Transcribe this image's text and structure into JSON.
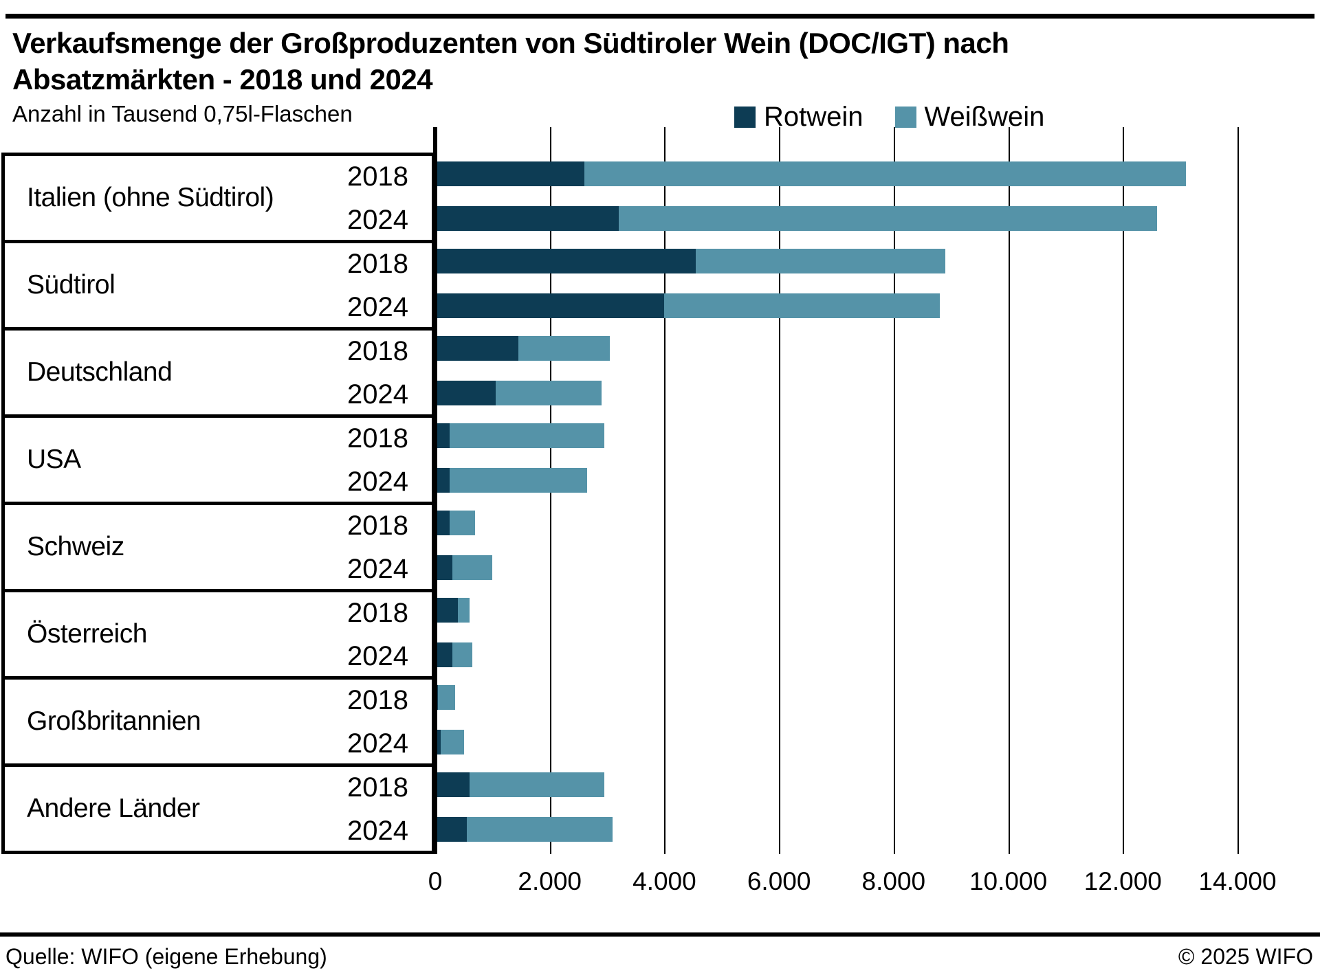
{
  "header": {
    "title_line1": "Verkaufsmenge der Großproduzenten von Südtiroler Wein (DOC/IGT) nach",
    "title_line2": "Absatzmärkten - 2018 und 2024",
    "subtitle": "Anzahl in Tausend 0,75l-Flaschen"
  },
  "legend": {
    "items": [
      {
        "label": "Rotwein",
        "color": "#0d3c54"
      },
      {
        "label": "Weißwein",
        "color": "#5593a8"
      }
    ]
  },
  "footer": {
    "source": "Quelle: WIFO (eigene Erhebung)",
    "copyright": "© 2025 WIFO"
  },
  "chart_data": {
    "type": "bar",
    "orientation": "horizontal",
    "stacked": true,
    "title": "Verkaufsmenge der Großproduzenten von Südtiroler Wein (DOC/IGT) nach Absatzmärkten - 2018 und 2024",
    "unit_label": "Anzahl in Tausend 0,75l-Flaschen",
    "series_names": [
      "Rotwein",
      "Weißwein"
    ],
    "series_colors": {
      "Rotwein": "#0d3c54",
      "Weißwein": "#5593a8"
    },
    "xlim": [
      0,
      14000
    ],
    "x_ticks": [
      0,
      2000,
      4000,
      6000,
      8000,
      10000,
      12000,
      14000
    ],
    "x_tick_labels": [
      "0",
      "2.000",
      "4.000",
      "6.000",
      "8.000",
      "10.000",
      "12.000",
      "14.000"
    ],
    "grid": true,
    "legend_position": "top-right",
    "groups": [
      {
        "market": "Italien (ohne Südtirol)",
        "rows": [
          {
            "year": "2018",
            "Rotwein": 2600,
            "Weißwein": 10500
          },
          {
            "year": "2024",
            "Rotwein": 3200,
            "Weißwein": 9400
          }
        ]
      },
      {
        "market": "Südtirol",
        "rows": [
          {
            "year": "2018",
            "Rotwein": 4550,
            "Weißwein": 4350
          },
          {
            "year": "2024",
            "Rotwein": 4000,
            "Weißwein": 4800
          }
        ]
      },
      {
        "market": "Deutschland",
        "rows": [
          {
            "year": "2018",
            "Rotwein": 1450,
            "Weißwein": 1600
          },
          {
            "year": "2024",
            "Rotwein": 1050,
            "Weißwein": 1850
          }
        ]
      },
      {
        "market": "USA",
        "rows": [
          {
            "year": "2018",
            "Rotwein": 250,
            "Weißwein": 2700
          },
          {
            "year": "2024",
            "Rotwein": 250,
            "Weißwein": 2400
          }
        ]
      },
      {
        "market": "Schweiz",
        "rows": [
          {
            "year": "2018",
            "Rotwein": 250,
            "Weißwein": 450
          },
          {
            "year": "2024",
            "Rotwein": 300,
            "Weißwein": 700
          }
        ]
      },
      {
        "market": "Österreich",
        "rows": [
          {
            "year": "2018",
            "Rotwein": 400,
            "Weißwein": 200
          },
          {
            "year": "2024",
            "Rotwein": 300,
            "Weißwein": 350
          }
        ]
      },
      {
        "market": "Großbritannien",
        "rows": [
          {
            "year": "2018",
            "Rotwein": 50,
            "Weißwein": 300
          },
          {
            "year": "2024",
            "Rotwein": 100,
            "Weißwein": 400
          }
        ]
      },
      {
        "market": "Andere Länder",
        "rows": [
          {
            "year": "2018",
            "Rotwein": 600,
            "Weißwein": 2350
          },
          {
            "year": "2024",
            "Rotwein": 550,
            "Weißwein": 2550
          }
        ]
      }
    ]
  }
}
